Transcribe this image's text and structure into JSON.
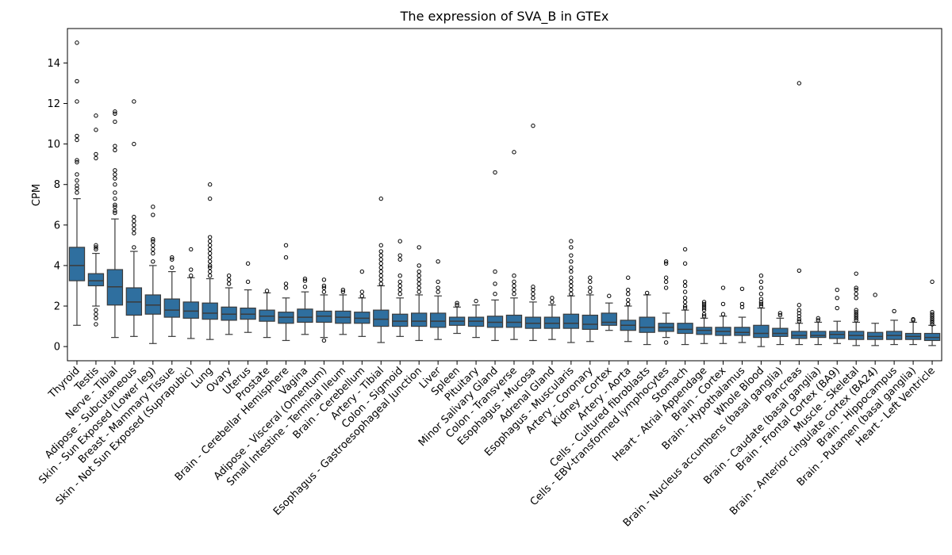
{
  "chart_data": {
    "type": "box",
    "title": "The expression of SVA_B in GTEx",
    "xlabel": "",
    "ylabel": "CPM",
    "ylim": [
      -0.7,
      15.7
    ],
    "yticks": [
      0,
      2,
      4,
      6,
      8,
      10,
      12,
      14
    ],
    "grid": false,
    "box_color": "#2f6f9f",
    "categories": [
      "Thyroid",
      "Testis",
      "Nerve - Tibial",
      "Adipose - Subcutaneous",
      "Skin - Sun Exposed (Lower leg)",
      "Breast - Mammary Tissue",
      "Skin - Not Sun Exposed (Suprapubic)",
      "Lung",
      "Ovary",
      "Uterus",
      "Prostate",
      "Brain - Cerebellar Hemisphere",
      "Vagina",
      "Adipose - Visceral (Omentum)",
      "Small Intestine - Terminal Ileum",
      "Brain - Cerebellum",
      "Artery - Tibial",
      "Colon - Sigmoid",
      "Esophagus - Gastroesophageal Junction",
      "Liver",
      "Spleen",
      "Pituitary",
      "Minor Salivary Gland",
      "Colon - Transverse",
      "Esophagus - Mucosa",
      "Adrenal Gland",
      "Esophagus - Muscularis",
      "Artery - Coronary",
      "Kidney - Cortex",
      "Artery - Aorta",
      "Cells - Cultured fibroblasts",
      "Cells - EBV-transformed lymphocytes",
      "Stomach",
      "Heart - Atrial Appendage",
      "Brain - Cortex",
      "Brain - Hypothalamus",
      "Whole Blood",
      "Brain - Nucleus accumbens (basal ganglia)",
      "Pancreas",
      "Brain - Caudate (basal ganglia)",
      "Brain - Frontal Cortex (BA9)",
      "Muscle - Skeletal",
      "Brain - Anterior cingulate cortex (BA24)",
      "Brain - Hippocampus",
      "Brain - Putamen (basal ganglia)",
      "Heart - Left Ventricle"
    ],
    "boxes": [
      {
        "whislo": 1.05,
        "q1": 3.25,
        "med": 4.0,
        "q3": 4.9,
        "whishi": 7.3,
        "fliers": [
          7.6,
          7.8,
          7.95,
          8.2,
          8.5,
          9.1,
          9.2,
          10.2,
          10.4,
          12.1,
          13.1,
          15.0
        ]
      },
      {
        "whislo": 2.0,
        "q1": 3.0,
        "med": 3.25,
        "q3": 3.6,
        "whishi": 4.6,
        "fliers": [
          1.1,
          1.4,
          1.6,
          1.8,
          4.8,
          4.9,
          5.0,
          9.3,
          9.5,
          10.7,
          11.4
        ]
      },
      {
        "whislo": 0.45,
        "q1": 2.05,
        "med": 2.95,
        "q3": 3.8,
        "whishi": 6.3,
        "fliers": [
          6.6,
          6.7,
          6.9,
          7.0,
          7.3,
          7.6,
          8.0,
          8.3,
          8.5,
          8.7,
          9.7,
          9.9,
          11.1,
          11.5,
          11.6
        ]
      },
      {
        "whislo": 0.5,
        "q1": 1.55,
        "med": 2.2,
        "q3": 2.9,
        "whishi": 4.7,
        "fliers": [
          4.9,
          5.6,
          5.8,
          6.0,
          6.2,
          6.4,
          10.0,
          12.1
        ]
      },
      {
        "whislo": 0.15,
        "q1": 1.6,
        "med": 2.05,
        "q3": 2.55,
        "whishi": 4.0,
        "fliers": [
          4.2,
          4.6,
          4.8,
          5.0,
          5.2,
          5.3,
          6.5,
          6.9
        ]
      },
      {
        "whislo": 0.5,
        "q1": 1.45,
        "med": 1.8,
        "q3": 2.35,
        "whishi": 3.7,
        "fliers": [
          3.9,
          4.3,
          4.4
        ]
      },
      {
        "whislo": 0.4,
        "q1": 1.4,
        "med": 1.75,
        "q3": 2.2,
        "whishi": 3.4,
        "fliers": [
          3.5,
          3.8,
          4.8
        ]
      },
      {
        "whislo": 0.35,
        "q1": 1.35,
        "med": 1.65,
        "q3": 2.15,
        "whishi": 3.35,
        "fliers": [
          3.5,
          3.7,
          3.9,
          4.0,
          4.2,
          4.4,
          4.6,
          4.8,
          5.0,
          5.2,
          5.4,
          7.3,
          8.0
        ]
      },
      {
        "whislo": 0.6,
        "q1": 1.3,
        "med": 1.6,
        "q3": 1.95,
        "whishi": 2.9,
        "fliers": [
          3.1,
          3.3,
          3.5
        ]
      },
      {
        "whislo": 0.7,
        "q1": 1.35,
        "med": 1.6,
        "q3": 1.9,
        "whishi": 2.8,
        "fliers": [
          3.2,
          4.1
        ]
      },
      {
        "whislo": 0.45,
        "q1": 1.25,
        "med": 1.5,
        "q3": 1.8,
        "whishi": 2.65,
        "fliers": [
          2.75
        ]
      },
      {
        "whislo": 0.3,
        "q1": 1.15,
        "med": 1.45,
        "q3": 1.7,
        "whishi": 2.4,
        "fliers": [
          2.9,
          3.1,
          4.4,
          5.0
        ]
      },
      {
        "whislo": 0.6,
        "q1": 1.2,
        "med": 1.45,
        "q3": 1.85,
        "whishi": 2.7,
        "fliers": [
          2.95,
          3.25,
          3.35
        ]
      },
      {
        "whislo": 0.45,
        "q1": 1.2,
        "med": 1.5,
        "q3": 1.75,
        "whishi": 2.55,
        "fliers": [
          0.3,
          2.7,
          2.9,
          3.0,
          3.3
        ]
      },
      {
        "whislo": 0.6,
        "q1": 1.15,
        "med": 1.45,
        "q3": 1.75,
        "whishi": 2.55,
        "fliers": [
          2.7,
          2.8
        ]
      },
      {
        "whislo": 0.5,
        "q1": 1.15,
        "med": 1.4,
        "q3": 1.7,
        "whishi": 2.4,
        "fliers": [
          2.5,
          2.7,
          3.7
        ]
      },
      {
        "whislo": 0.2,
        "q1": 1.0,
        "med": 1.35,
        "q3": 1.8,
        "whishi": 3.0,
        "fliers": [
          3.1,
          3.3,
          3.5,
          3.7,
          3.9,
          4.1,
          4.3,
          4.5,
          4.7,
          5.0,
          7.3
        ]
      },
      {
        "whislo": 0.5,
        "q1": 1.0,
        "med": 1.25,
        "q3": 1.6,
        "whishi": 2.4,
        "fliers": [
          2.6,
          2.8,
          3.0,
          3.2,
          3.5,
          4.3,
          4.5,
          5.2
        ]
      },
      {
        "whislo": 0.3,
        "q1": 1.0,
        "med": 1.25,
        "q3": 1.65,
        "whishi": 2.55,
        "fliers": [
          2.7,
          2.9,
          3.1,
          3.3,
          3.5,
          3.7,
          4.0,
          4.9
        ]
      },
      {
        "whislo": 0.35,
        "q1": 0.95,
        "med": 1.25,
        "q3": 1.65,
        "whishi": 2.5,
        "fliers": [
          2.7,
          2.9,
          3.2,
          4.2
        ]
      },
      {
        "whislo": 0.65,
        "q1": 1.05,
        "med": 1.25,
        "q3": 1.45,
        "whishi": 1.95,
        "fliers": [
          2.05,
          2.15
        ]
      },
      {
        "whislo": 0.45,
        "q1": 1.0,
        "med": 1.25,
        "q3": 1.45,
        "whishi": 2.05,
        "fliers": [
          2.25
        ]
      },
      {
        "whislo": 0.3,
        "q1": 0.95,
        "med": 1.2,
        "q3": 1.5,
        "whishi": 2.3,
        "fliers": [
          2.6,
          3.1,
          3.7,
          8.6
        ]
      },
      {
        "whislo": 0.35,
        "q1": 0.95,
        "med": 1.2,
        "q3": 1.55,
        "whishi": 2.4,
        "fliers": [
          2.6,
          2.8,
          3.0,
          3.2,
          3.5,
          9.6
        ]
      },
      {
        "whislo": 0.3,
        "q1": 0.9,
        "med": 1.15,
        "q3": 1.45,
        "whishi": 2.2,
        "fliers": [
          2.4,
          2.6,
          2.8,
          2.95,
          10.9
        ]
      },
      {
        "whislo": 0.35,
        "q1": 0.9,
        "med": 1.15,
        "q3": 1.45,
        "whishi": 2.05,
        "fliers": [
          2.2,
          2.4
        ]
      },
      {
        "whislo": 0.2,
        "q1": 0.9,
        "med": 1.15,
        "q3": 1.6,
        "whishi": 2.5,
        "fliers": [
          2.6,
          2.8,
          3.0,
          3.2,
          3.4,
          3.7,
          3.9,
          4.2,
          4.5,
          4.9,
          5.2
        ]
      },
      {
        "whislo": 0.25,
        "q1": 0.85,
        "med": 1.1,
        "q3": 1.55,
        "whishi": 2.55,
        "fliers": [
          2.7,
          2.9,
          3.2,
          3.4
        ]
      },
      {
        "whislo": 0.8,
        "q1": 1.05,
        "med": 1.2,
        "q3": 1.65,
        "whishi": 2.15,
        "fliers": [
          2.5
        ]
      },
      {
        "whislo": 0.25,
        "q1": 0.8,
        "med": 1.05,
        "q3": 1.3,
        "whishi": 2.0,
        "fliers": [
          2.1,
          2.3,
          2.6,
          2.8,
          3.4
        ]
      },
      {
        "whislo": 0.1,
        "q1": 0.7,
        "med": 0.95,
        "q3": 1.45,
        "whishi": 2.55,
        "fliers": [
          2.65
        ]
      },
      {
        "whislo": 0.45,
        "q1": 0.75,
        "med": 0.95,
        "q3": 1.15,
        "whishi": 1.65,
        "fliers": [
          0.2,
          2.9,
          3.2,
          3.4,
          4.1,
          4.2
        ]
      },
      {
        "whislo": 0.1,
        "q1": 0.65,
        "med": 0.85,
        "q3": 1.15,
        "whishi": 1.8,
        "fliers": [
          1.9,
          2.0,
          2.2,
          2.4,
          2.7,
          3.0,
          3.2,
          4.1,
          4.8
        ]
      },
      {
        "whislo": 0.15,
        "q1": 0.6,
        "med": 0.8,
        "q3": 0.95,
        "whishi": 1.4,
        "fliers": [
          1.5,
          1.6,
          1.8,
          1.9,
          2.0,
          2.1,
          2.2
        ]
      },
      {
        "whislo": 0.15,
        "q1": 0.55,
        "med": 0.75,
        "q3": 0.95,
        "whishi": 1.5,
        "fliers": [
          1.6,
          2.1,
          2.9
        ]
      },
      {
        "whislo": 0.2,
        "q1": 0.55,
        "med": 0.7,
        "q3": 0.95,
        "whishi": 1.45,
        "fliers": [
          1.95,
          2.1,
          2.85
        ]
      },
      {
        "whislo": 0.0,
        "q1": 0.45,
        "med": 0.65,
        "q3": 1.05,
        "whishi": 1.9,
        "fliers": [
          2.0,
          2.1,
          2.2,
          2.35,
          2.6,
          2.9,
          3.2,
          3.5
        ]
      },
      {
        "whislo": 0.1,
        "q1": 0.5,
        "med": 0.65,
        "q3": 0.9,
        "whishi": 1.4,
        "fliers": [
          1.55,
          1.65
        ]
      },
      {
        "whislo": 0.1,
        "q1": 0.4,
        "med": 0.55,
        "q3": 0.75,
        "whishi": 1.15,
        "fliers": [
          1.25,
          1.35,
          1.5,
          1.65,
          1.8,
          2.05,
          3.75,
          13.0
        ]
      },
      {
        "whislo": 0.1,
        "q1": 0.45,
        "med": 0.55,
        "q3": 0.75,
        "whishi": 1.2,
        "fliers": [
          1.3,
          1.4
        ]
      },
      {
        "whislo": 0.15,
        "q1": 0.4,
        "med": 0.6,
        "q3": 0.75,
        "whishi": 1.25,
        "fliers": [
          1.9,
          2.4,
          2.8
        ]
      },
      {
        "whislo": 0.05,
        "q1": 0.35,
        "med": 0.55,
        "q3": 0.75,
        "whishi": 1.2,
        "fliers": [
          1.3,
          1.4,
          1.5,
          1.6,
          1.7,
          1.8,
          2.4,
          2.6,
          2.8,
          2.9,
          3.6
        ]
      },
      {
        "whislo": 0.05,
        "q1": 0.35,
        "med": 0.5,
        "q3": 0.7,
        "whishi": 1.15,
        "fliers": [
          2.55
        ]
      },
      {
        "whislo": 0.1,
        "q1": 0.35,
        "med": 0.55,
        "q3": 0.75,
        "whishi": 1.3,
        "fliers": [
          1.75
        ]
      },
      {
        "whislo": 0.1,
        "q1": 0.35,
        "med": 0.5,
        "q3": 0.65,
        "whishi": 1.2,
        "fliers": [
          1.3,
          1.35
        ]
      },
      {
        "whislo": 0.05,
        "q1": 0.3,
        "med": 0.45,
        "q3": 0.65,
        "whishi": 1.05,
        "fliers": [
          1.1,
          1.2,
          1.3,
          1.4,
          1.5,
          1.6,
          1.7,
          3.2
        ]
      }
    ]
  }
}
